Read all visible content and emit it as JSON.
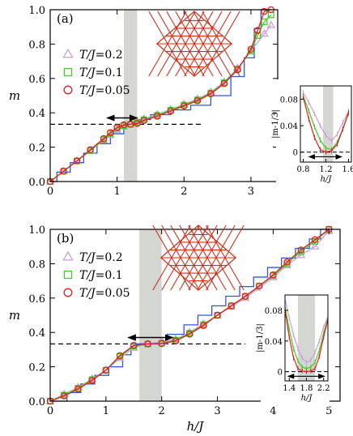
{
  "figure": {
    "xlabel": "h/J",
    "ylabel": "m",
    "legend_prefix": "T/J="
  },
  "chart_data": [
    {
      "panel_label": "(a)",
      "type": "line",
      "xlabel": "",
      "ylabel": "m",
      "xlim": [
        0,
        3.4
      ],
      "ylim": [
        0,
        1.0
      ],
      "xticks": [
        0,
        1,
        2,
        3
      ],
      "yticks": [
        0.0,
        0.2,
        0.4,
        0.6,
        0.8,
        1.0
      ],
      "ytick_labels": [
        "0.0",
        "0.2",
        "0.4",
        "0.6",
        "0.8",
        "1.0"
      ],
      "plateau_band": [
        1.1,
        1.3
      ],
      "dashed_line_y": 0.3333,
      "dashed_line_x": [
        0,
        2.3
      ],
      "arrow_x": [
        0.85,
        1.3
      ],
      "arrow_y": 0.37,
      "series": [
        {
          "name": "T/J=0.2",
          "marker": "triangle",
          "color": "#c9a0dc",
          "x": [
            0,
            0.2,
            0.4,
            0.6,
            0.8,
            0.9,
            1.0,
            1.1,
            1.2,
            1.3,
            1.4,
            1.6,
            1.8,
            2.0,
            2.2,
            2.4,
            2.6,
            2.8,
            3.0,
            3.2,
            3.3
          ],
          "y": [
            0,
            0.06,
            0.12,
            0.18,
            0.24,
            0.27,
            0.3,
            0.32,
            0.335,
            0.35,
            0.365,
            0.39,
            0.42,
            0.45,
            0.48,
            0.52,
            0.58,
            0.66,
            0.76,
            0.86,
            0.91
          ]
        },
        {
          "name": "T/J=0.1",
          "marker": "square",
          "color": "#44cc22",
          "x": [
            0,
            0.2,
            0.4,
            0.6,
            0.8,
            0.9,
            1.0,
            1.1,
            1.2,
            1.3,
            1.4,
            1.6,
            1.8,
            2.0,
            2.2,
            2.4,
            2.6,
            2.8,
            3.0,
            3.1,
            3.2,
            3.3
          ],
          "y": [
            0,
            0.06,
            0.12,
            0.18,
            0.245,
            0.28,
            0.31,
            0.325,
            0.333,
            0.343,
            0.36,
            0.385,
            0.415,
            0.445,
            0.475,
            0.515,
            0.575,
            0.655,
            0.76,
            0.85,
            0.93,
            0.97
          ]
        },
        {
          "name": "T/J=0.05",
          "marker": "circle",
          "color": "#e02020",
          "x": [
            0,
            0.2,
            0.4,
            0.6,
            0.8,
            0.9,
            1.0,
            1.1,
            1.2,
            1.3,
            1.4,
            1.6,
            1.8,
            2.0,
            2.2,
            2.4,
            2.6,
            2.8,
            3.0,
            3.1,
            3.2,
            3.3
          ],
          "y": [
            0,
            0.06,
            0.12,
            0.185,
            0.25,
            0.285,
            0.315,
            0.33,
            0.333,
            0.338,
            0.355,
            0.38,
            0.41,
            0.44,
            0.47,
            0.51,
            0.57,
            0.65,
            0.77,
            0.88,
            0.99,
            1.0
          ]
        }
      ],
      "staircase": {
        "name": "T=0 staircase",
        "color": "#3355dd",
        "x": [
          0,
          0.1,
          0.1,
          0.3,
          0.3,
          0.5,
          0.5,
          0.7,
          0.7,
          0.9,
          0.9,
          1.1,
          1.1,
          1.3,
          1.3,
          1.5,
          1.5,
          1.8,
          1.8,
          2.1,
          2.1,
          2.4,
          2.4,
          2.7,
          2.7,
          2.9,
          2.9,
          3.05,
          3.05,
          3.15,
          3.15,
          3.3
        ],
        "y": [
          0,
          0,
          0.055,
          0.055,
          0.11,
          0.11,
          0.165,
          0.165,
          0.22,
          0.22,
          0.278,
          0.278,
          0.333,
          0.333,
          0.361,
          0.361,
          0.389,
          0.389,
          0.417,
          0.417,
          0.444,
          0.444,
          0.5,
          0.5,
          0.611,
          0.611,
          0.72,
          0.72,
          0.89,
          0.89,
          1.0,
          1.0
        ]
      },
      "inset": {
        "xlabel": "h/J",
        "ylabel": "|m-1/3|",
        "xlim": [
          0.75,
          1.65
        ],
        "ylim": [
          -0.015,
          0.1
        ],
        "xticks": [
          0.8,
          1.2,
          1.6
        ],
        "xtick_labels": [
          "0.8",
          "1.2",
          "1.6"
        ],
        "yticks": [
          0,
          0.04,
          0.08
        ],
        "ytick_labels": [
          "0",
          "0.04",
          "0.08"
        ],
        "plateau_band": [
          1.15,
          1.33
        ],
        "arrow_x": [
          0.9,
          1.48
        ],
        "arrow_y": -0.007,
        "series": [
          {
            "name": "T/J=0.2",
            "color": "#c9a0dc",
            "x": [
              0.8,
              0.9,
              1.0,
              1.1,
              1.2,
              1.3,
              1.4,
              1.5,
              1.6
            ],
            "y": [
              0.09,
              0.075,
              0.058,
              0.04,
              0.025,
              0.017,
              0.027,
              0.045,
              0.062
            ]
          },
          {
            "name": "T/J=0.1",
            "color": "#44cc22",
            "x": [
              0.8,
              0.9,
              1.0,
              1.1,
              1.2,
              1.3,
              1.4,
              1.5,
              1.6
            ],
            "y": [
              0.085,
              0.062,
              0.038,
              0.018,
              0.006,
              0.004,
              0.015,
              0.035,
              0.058
            ]
          },
          {
            "name": "T/J=0.05",
            "color": "#e02020",
            "x": [
              0.8,
              0.9,
              1.0,
              1.1,
              1.2,
              1.3,
              1.4,
              1.5,
              1.6
            ],
            "y": [
              0.083,
              0.05,
              0.022,
              0.004,
              0.0,
              0.002,
              0.012,
              0.035,
              0.06
            ]
          }
        ]
      }
    },
    {
      "panel_label": "(b)",
      "type": "line",
      "xlabel": "h/J",
      "ylabel": "m",
      "xlim": [
        0,
        5.2
      ],
      "ylim": [
        0,
        1.0
      ],
      "xticks": [
        0,
        1,
        2,
        3,
        4,
        5
      ],
      "yticks": [
        0.0,
        0.2,
        0.4,
        0.6,
        0.8,
        1.0
      ],
      "ytick_labels": [
        "0.0",
        "0.2",
        "0.4",
        "0.6",
        "0.8",
        "1.0"
      ],
      "plateau_band": [
        1.6,
        2.0
      ],
      "dashed_line_y": 0.3333,
      "dashed_line_x": [
        0,
        3.5
      ],
      "arrow_x": [
        1.4,
        2.2
      ],
      "arrow_y": 0.37,
      "series": [
        {
          "name": "T/J=0.2",
          "marker": "triangle",
          "color": "#c9a0dc",
          "x": [
            0,
            0.25,
            0.5,
            0.75,
            1.0,
            1.25,
            1.5,
            1.75,
            2.0,
            2.25,
            2.5,
            2.75,
            3.0,
            3.25,
            3.5,
            3.75,
            4.0,
            4.25,
            4.5,
            4.75,
            5.0
          ],
          "y": [
            0,
            0.04,
            0.08,
            0.13,
            0.18,
            0.25,
            0.31,
            0.335,
            0.345,
            0.36,
            0.4,
            0.45,
            0.5,
            0.55,
            0.6,
            0.66,
            0.72,
            0.79,
            0.85,
            0.9,
            0.99
          ]
        },
        {
          "name": "T/J=0.1",
          "marker": "square",
          "color": "#44cc22",
          "x": [
            0,
            0.25,
            0.5,
            0.75,
            1.0,
            1.25,
            1.5,
            1.75,
            2.0,
            2.25,
            2.5,
            2.75,
            3.0,
            3.25,
            3.5,
            3.75,
            4.0,
            4.25,
            4.5,
            4.75,
            5.0
          ],
          "y": [
            0,
            0.035,
            0.075,
            0.125,
            0.18,
            0.26,
            0.32,
            0.333,
            0.338,
            0.355,
            0.395,
            0.445,
            0.5,
            0.555,
            0.61,
            0.67,
            0.73,
            0.8,
            0.87,
            0.93,
            1.0
          ]
        },
        {
          "name": "T/J=0.05",
          "marker": "circle",
          "color": "#e02020",
          "x": [
            0,
            0.25,
            0.5,
            0.75,
            1.0,
            1.25,
            1.5,
            1.75,
            2.0,
            2.25,
            2.5,
            2.75,
            3.0,
            3.25,
            3.5,
            3.75,
            4.0,
            4.25,
            4.5,
            4.75,
            5.0
          ],
          "y": [
            0,
            0.03,
            0.07,
            0.12,
            0.18,
            0.265,
            0.325,
            0.333,
            0.335,
            0.35,
            0.39,
            0.44,
            0.5,
            0.555,
            0.61,
            0.67,
            0.735,
            0.81,
            0.88,
            0.94,
            1.0
          ]
        }
      ],
      "staircase": {
        "name": "T=0 staircase",
        "color": "#3355dd",
        "x": [
          0,
          0.3,
          0.3,
          0.55,
          0.55,
          0.8,
          0.8,
          1.05,
          1.05,
          1.3,
          1.3,
          1.45,
          1.45,
          2.1,
          2.1,
          2.4,
          2.4,
          2.65,
          2.65,
          2.9,
          2.9,
          3.15,
          3.15,
          3.4,
          3.4,
          3.65,
          3.65,
          3.9,
          3.9,
          4.15,
          4.15,
          4.4,
          4.4,
          4.65,
          4.65,
          4.85,
          4.85,
          5.0
        ],
        "y": [
          0,
          0,
          0.05,
          0.05,
          0.1,
          0.1,
          0.15,
          0.15,
          0.2,
          0.2,
          0.27,
          0.27,
          0.333,
          0.333,
          0.389,
          0.389,
          0.444,
          0.444,
          0.5,
          0.5,
          0.555,
          0.555,
          0.611,
          0.611,
          0.667,
          0.667,
          0.722,
          0.722,
          0.778,
          0.778,
          0.833,
          0.833,
          0.889,
          0.889,
          0.944,
          0.944,
          1.0,
          1.0
        ]
      },
      "inset": {
        "xlabel": "h/J",
        "ylabel": "|m-1/3|",
        "xlim": [
          1.3,
          2.3
        ],
        "ylim": [
          -0.012,
          0.1
        ],
        "xticks": [
          1.4,
          1.8,
          2.2
        ],
        "xtick_labels": [
          "1.4",
          "1.8",
          "2.2"
        ],
        "yticks": [
          0,
          0.04,
          0.08
        ],
        "ytick_labels": [
          "0",
          "0.04",
          "0.08"
        ],
        "plateau_band": [
          1.6,
          2.0
        ],
        "arrow_x": [
          1.37,
          2.22
        ],
        "arrow_y": -0.006,
        "series": [
          {
            "name": "T/J=0.2",
            "color": "#c9a0dc",
            "x": [
              1.3,
              1.4,
              1.5,
              1.6,
              1.7,
              1.8,
              1.9,
              2.0,
              2.1,
              2.2,
              2.3
            ],
            "y": [
              0.095,
              0.07,
              0.048,
              0.03,
              0.018,
              0.012,
              0.015,
              0.025,
              0.04,
              0.058,
              0.072
            ]
          },
          {
            "name": "T/J=0.1",
            "color": "#44cc22",
            "x": [
              1.3,
              1.4,
              1.5,
              1.6,
              1.7,
              1.8,
              1.9,
              2.0,
              2.1,
              2.2,
              2.3
            ],
            "y": [
              0.085,
              0.055,
              0.03,
              0.014,
              0.006,
              0.004,
              0.006,
              0.012,
              0.028,
              0.05,
              0.07
            ]
          },
          {
            "name": "T/J=0.05",
            "color": "#e02020",
            "x": [
              1.3,
              1.4,
              1.5,
              1.6,
              1.7,
              1.8,
              1.9,
              2.0,
              2.1,
              2.2,
              2.3
            ],
            "y": [
              0.08,
              0.045,
              0.018,
              0.004,
              0.001,
              0.0,
              0.001,
              0.004,
              0.02,
              0.045,
              0.068
            ]
          }
        ]
      }
    }
  ]
}
